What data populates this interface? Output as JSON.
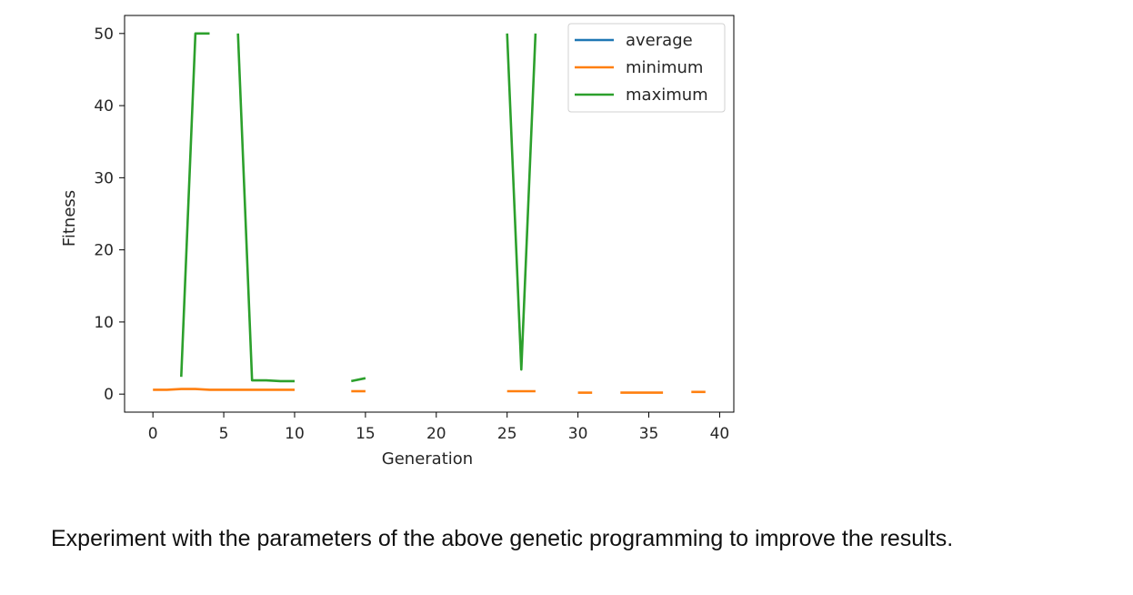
{
  "chart_data": {
    "type": "line",
    "title": "",
    "xlabel": "Generation",
    "ylabel": "Fitness",
    "xlim": [
      -2,
      41
    ],
    "ylim": [
      -2.5,
      52.5
    ],
    "xticks": [
      0,
      5,
      10,
      15,
      20,
      25,
      30,
      35,
      40
    ],
    "yticks": [
      0,
      10,
      20,
      30,
      40,
      50
    ],
    "grid": false,
    "legend_position": "top-right",
    "series": [
      {
        "name": "average",
        "color": "#1f77b4",
        "segments": []
      },
      {
        "name": "minimum",
        "color": "#ff7f0e",
        "segments": [
          [
            [
              0,
              0.6
            ],
            [
              1,
              0.6
            ],
            [
              2,
              0.7
            ],
            [
              3,
              0.7
            ],
            [
              4,
              0.6
            ],
            [
              5,
              0.6
            ],
            [
              6,
              0.6
            ],
            [
              7,
              0.6
            ],
            [
              8,
              0.6
            ],
            [
              9,
              0.6
            ],
            [
              10,
              0.6
            ]
          ],
          [
            [
              14,
              0.4
            ],
            [
              15,
              0.4
            ]
          ],
          [
            [
              25,
              0.4
            ],
            [
              26,
              0.4
            ],
            [
              27,
              0.4
            ]
          ],
          [
            [
              30,
              0.2
            ],
            [
              31,
              0.2
            ]
          ],
          [
            [
              33,
              0.2
            ],
            [
              34,
              0.2
            ],
            [
              35,
              0.2
            ],
            [
              36,
              0.2
            ]
          ],
          [
            [
              38,
              0.3
            ],
            [
              39,
              0.3
            ]
          ]
        ]
      },
      {
        "name": "maximum",
        "color": "#2ca02c",
        "segments": [
          [
            [
              2,
              2.4
            ],
            [
              3,
              50
            ],
            [
              4,
              50
            ]
          ],
          [
            [
              6,
              50
            ],
            [
              7,
              1.9
            ],
            [
              8,
              1.9
            ],
            [
              9,
              1.8
            ],
            [
              10,
              1.8
            ]
          ],
          [
            [
              14,
              1.8
            ],
            [
              15,
              2.2
            ]
          ],
          [
            [
              25,
              50
            ],
            [
              26,
              3.4
            ],
            [
              27,
              50
            ]
          ]
        ]
      }
    ]
  },
  "caption": "Experiment with the parameters of the above genetic programming to improve the results."
}
